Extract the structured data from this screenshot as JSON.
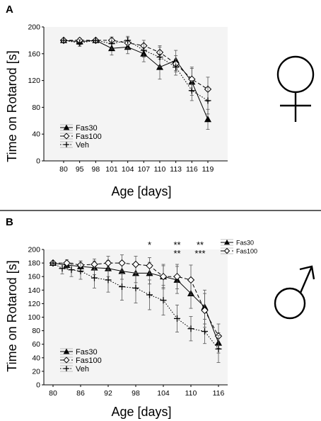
{
  "panels": [
    {
      "label": "A",
      "sex_symbol": "female-symbol"
    },
    {
      "label": "B",
      "sex_symbol": "male-symbol"
    }
  ],
  "chart_data": [
    {
      "type": "line",
      "panel": "A",
      "xlabel": "Age [days]",
      "ylabel": "Time on Rotarod [s]",
      "x_scale": "categorical",
      "categories": [
        80,
        95,
        98,
        101,
        104,
        107,
        110,
        113,
        116,
        119
      ],
      "ylim": [
        0,
        200
      ],
      "yticks": [
        0,
        40,
        80,
        120,
        160,
        200
      ],
      "legend_position": "lower-left",
      "series": [
        {
          "name": "Fas30",
          "marker": "filled-triangle",
          "line_style": "solid",
          "values": [
            180,
            178,
            180,
            168,
            170,
            160,
            140,
            150,
            118,
            62
          ],
          "errors": [
            3,
            5,
            3,
            10,
            10,
            12,
            18,
            15,
            20,
            15
          ]
        },
        {
          "name": "Fas100",
          "marker": "open-diamond",
          "line_style": "dashed",
          "values": [
            180,
            180,
            180,
            180,
            176,
            172,
            162,
            145,
            122,
            107
          ],
          "errors": [
            3,
            3,
            3,
            5,
            8,
            8,
            10,
            12,
            18,
            18
          ]
        },
        {
          "name": "Veh",
          "marker": "plus",
          "line_style": "dotted",
          "values": [
            180,
            176,
            180,
            175,
            180,
            165,
            155,
            140,
            105,
            90
          ],
          "errors": [
            3,
            5,
            3,
            8,
            6,
            10,
            15,
            12,
            15,
            20
          ]
        }
      ]
    },
    {
      "type": "line",
      "panel": "B",
      "xlabel": "Age [days]",
      "ylabel": "Time on Rotarod [s]",
      "x_scale": "linear",
      "xlim": [
        78,
        118
      ],
      "xticks": [
        80,
        86,
        92,
        98,
        104,
        110,
        116
      ],
      "ylim": [
        0,
        200
      ],
      "yticks": [
        0,
        20,
        40,
        60,
        80,
        100,
        120,
        140,
        160,
        180,
        200
      ],
      "legend_position": "lower-left",
      "annotations": [
        {
          "text": "*",
          "x": 101,
          "row": 1
        },
        {
          "text": "**",
          "x": 107,
          "row": 1
        },
        {
          "text": "**",
          "x": 112,
          "row": 1
        },
        {
          "text": "**",
          "x": 107,
          "row": 2
        },
        {
          "text": "***",
          "x": 112,
          "row": 2
        }
      ],
      "inset_legend": [
        "Fas30",
        "Fas100"
      ],
      "series": [
        {
          "name": "Fas30",
          "marker": "filled-triangle",
          "line_style": "solid",
          "x": [
            80,
            83,
            86,
            89,
            92,
            95,
            98,
            101,
            104,
            107,
            110,
            113,
            116
          ],
          "values": [
            180,
            177,
            175,
            173,
            172,
            168,
            165,
            165,
            160,
            155,
            135,
            115,
            62
          ],
          "errors": [
            3,
            5,
            8,
            10,
            12,
            12,
            14,
            16,
            18,
            20,
            22,
            25,
            15
          ]
        },
        {
          "name": "Fas100",
          "marker": "open-diamond",
          "line_style": "dashed",
          "x": [
            80,
            83,
            86,
            89,
            92,
            95,
            98,
            101,
            104,
            107,
            110,
            113,
            116
          ],
          "values": [
            180,
            180,
            177,
            178,
            180,
            180,
            178,
            176,
            160,
            160,
            155,
            110,
            72
          ],
          "errors": [
            3,
            5,
            6,
            8,
            10,
            12,
            12,
            12,
            16,
            18,
            22,
            25,
            18
          ]
        },
        {
          "name": "Veh",
          "marker": "plus",
          "line_style": "dotted",
          "x": [
            80,
            82,
            84,
            86,
            89,
            92,
            95,
            98,
            101,
            104,
            107,
            110,
            113,
            116
          ],
          "values": [
            180,
            172,
            170,
            168,
            158,
            155,
            145,
            143,
            133,
            125,
            98,
            83,
            79,
            53
          ],
          "errors": [
            3,
            8,
            10,
            12,
            15,
            18,
            20,
            22,
            22,
            22,
            20,
            18,
            18,
            20
          ]
        }
      ]
    }
  ]
}
